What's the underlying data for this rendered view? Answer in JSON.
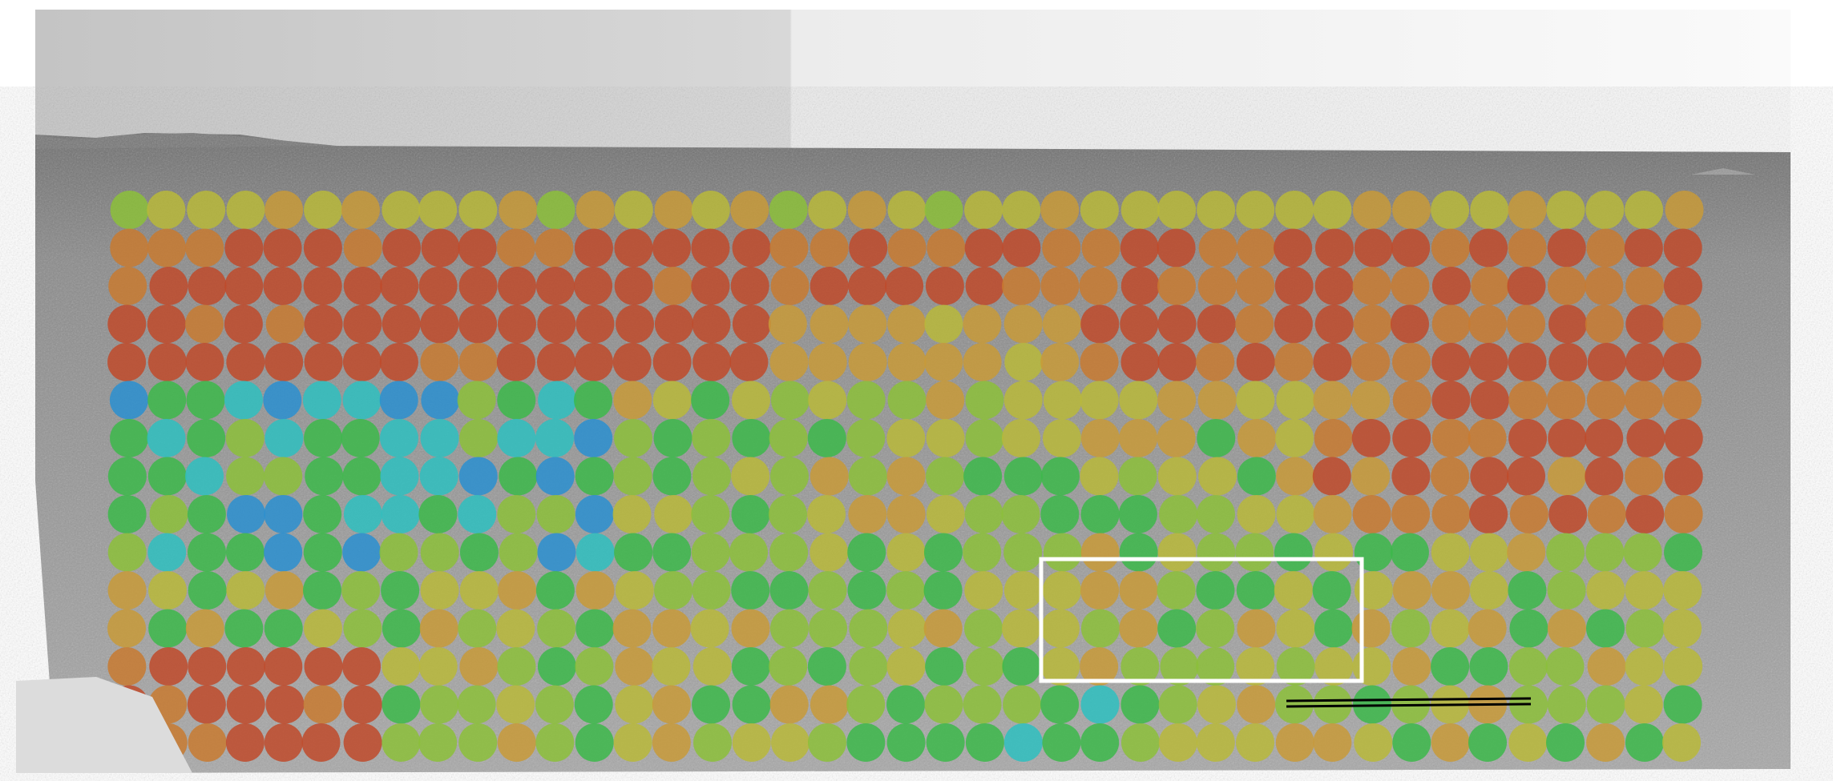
{
  "scene": {
    "sky_colors": [
      "#bdbdbd",
      "#f4f4f4"
    ],
    "ground_color": "#8d8d8d",
    "colormap": [
      "#2a3fc0",
      "#2a8fd0",
      "#2ec0c0",
      "#3cb84a",
      "#8cc03a",
      "#b8b83a",
      "#c89a38",
      "#c87a30",
      "#c04a2a"
    ],
    "highlight_box_color": "#ffffff"
  }
}
